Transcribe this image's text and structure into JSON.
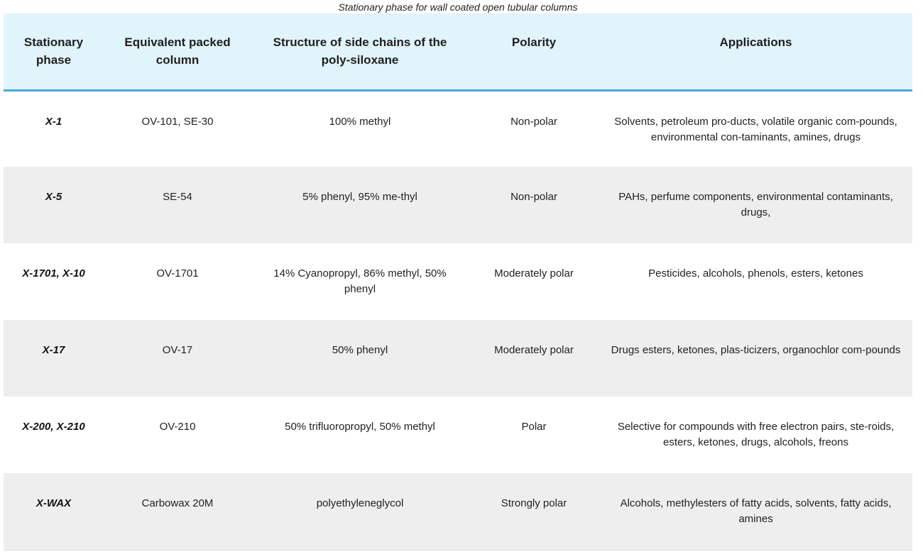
{
  "caption": "Stationary phase for wall coated open tubular columns",
  "headers": {
    "stationary_phase": "Stationary phase",
    "equivalent_packed_column": "Equivalent packed column",
    "side_chain_structure": "Structure of side chains of the poly-siloxane",
    "polarity": "Polarity",
    "applications": "Applications"
  },
  "rows": [
    {
      "phase": "X-1",
      "packed": "OV-101, SE-30",
      "structure": "100% methyl",
      "polarity": "Non-polar",
      "applications": "Solvents, petroleum pro-ducts, volatile organic com-pounds, environmental con-taminants, amines, drugs"
    },
    {
      "phase": "X-5",
      "packed": "SE-54",
      "structure": "5% phenyl, 95% me-thyl",
      "polarity": "Non-polar",
      "applications": "PAHs, perfume components, environmental contaminants, drugs,"
    },
    {
      "phase": "X-1701, X-10",
      "packed": "OV-1701",
      "structure": "14% Cyanopropyl, 86% methyl, 50% phenyl",
      "polarity": "Moderately polar",
      "applications": "Pesticides, alcohols, phenols, esters, ketones"
    },
    {
      "phase": "X-17",
      "packed": "OV-17",
      "structure": "50% phenyl",
      "polarity": "Moderately polar",
      "applications": "Drugs esters, ketones, plas-ticizers, organochlor com-pounds"
    },
    {
      "phase": "X-200, X-210",
      "packed": "OV-210",
      "structure": "50% trifluoropropyl, 50% methyl",
      "polarity": "Polar",
      "applications": "Selective for compounds with free electron pairs, ste-roids, esters, ketones, drugs, alcohols, freons"
    },
    {
      "phase": "X-WAX",
      "packed": "Carbowax 20M",
      "structure": "polyethyleneglycol",
      "polarity": "Strongly polar",
      "applications": "Alcohols, methylesters of fatty acids, solvents, fatty acids, amines"
    }
  ]
}
